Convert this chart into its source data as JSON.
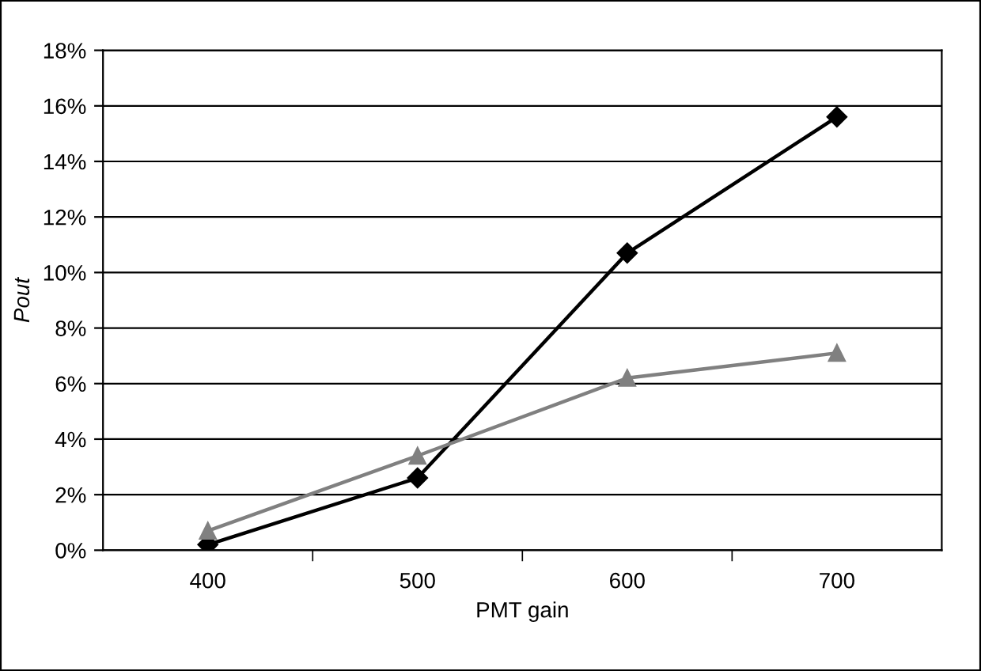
{
  "chart_data": {
    "type": "line",
    "xlabel": "PMT gain",
    "ylabel": "Pout",
    "categories": [
      "400",
      "500",
      "600",
      "700"
    ],
    "series": [
      {
        "color": "#000000",
        "marker": "diamond",
        "values": [
          0.2,
          2.6,
          10.7,
          15.6
        ]
      },
      {
        "color": "#808080",
        "marker": "triangle",
        "values": [
          0.7,
          3.4,
          6.2,
          7.1
        ]
      }
    ],
    "ylim": [
      0,
      18
    ],
    "yticks": [
      {
        "value": 0,
        "label": "0%"
      },
      {
        "value": 2,
        "label": "2%"
      },
      {
        "value": 4,
        "label": "4%"
      },
      {
        "value": 6,
        "label": "6%"
      },
      {
        "value": 8,
        "label": "8%"
      },
      {
        "value": 10,
        "label": "10%"
      },
      {
        "value": 12,
        "label": "12%"
      },
      {
        "value": 14,
        "label": "14%"
      },
      {
        "value": 16,
        "label": "16%"
      },
      {
        "value": 18,
        "label": "18%"
      }
    ],
    "grid": "y"
  }
}
